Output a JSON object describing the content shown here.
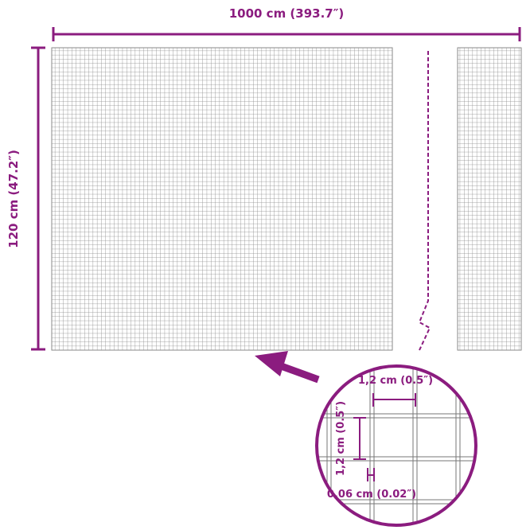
{
  "dimensions": {
    "width_label": "1000 cm (393.7″)",
    "height_label": "120 cm (47.2″)"
  },
  "detail": {
    "mesh_width_label": "1,2 cm (0.5″)",
    "mesh_height_label": "1,2 cm (0.5″)",
    "wire_thickness_label": "0,06 cm (0.02″)"
  },
  "colors": {
    "accent": "#8b1c7f",
    "grid": "#8a8a8a"
  }
}
